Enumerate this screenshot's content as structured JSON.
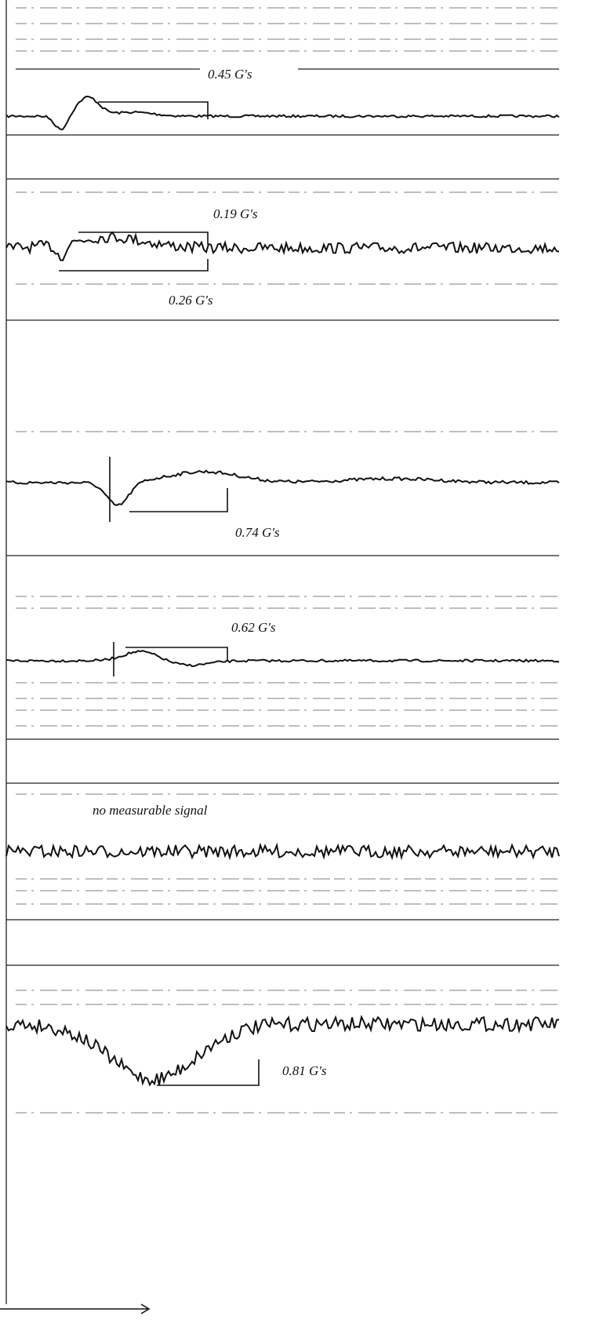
{
  "annotations": [
    "0.45 G's",
    "0.19 G's",
    "0.26 G's",
    "0.74 G's",
    "0.62 G's",
    "no measurable signal",
    "0.81 G's"
  ]
}
